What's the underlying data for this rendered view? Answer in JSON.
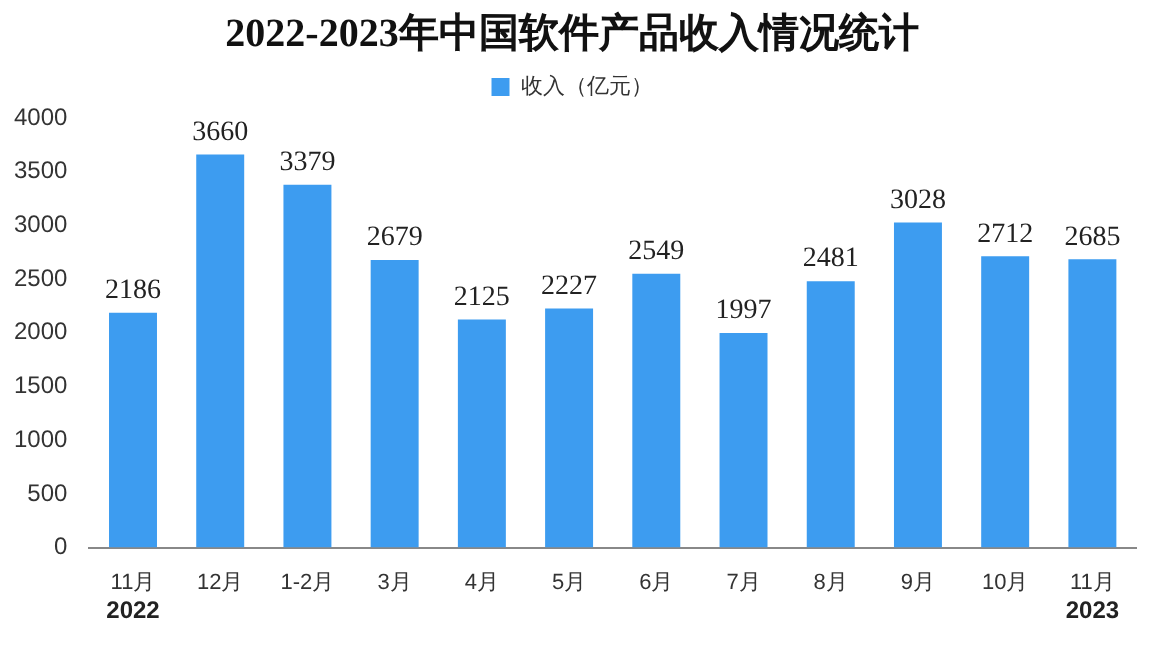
{
  "chart_data": {
    "type": "bar",
    "title": "2022-2023年中国软件产品收入情况统计",
    "categories": [
      "11月",
      "12月",
      "1-2月",
      "3月",
      "4月",
      "5月",
      "6月",
      "7月",
      "8月",
      "9月",
      "10月",
      "11月"
    ],
    "series": [
      {
        "name": "收入（亿元）",
        "color": "#3d9cf0",
        "values": [
          2186,
          3660,
          3379,
          2679,
          2125,
          2227,
          2549,
          1997,
          2481,
          3028,
          2712,
          2685
        ]
      }
    ],
    "ylim": [
      0,
      4000
    ],
    "yticks": [
      0,
      500,
      1000,
      1500,
      2000,
      2500,
      3000,
      3500,
      4000
    ],
    "grid": false,
    "legend": "top",
    "data_labels": true,
    "annotations": [
      "2022",
      "2023"
    ]
  }
}
